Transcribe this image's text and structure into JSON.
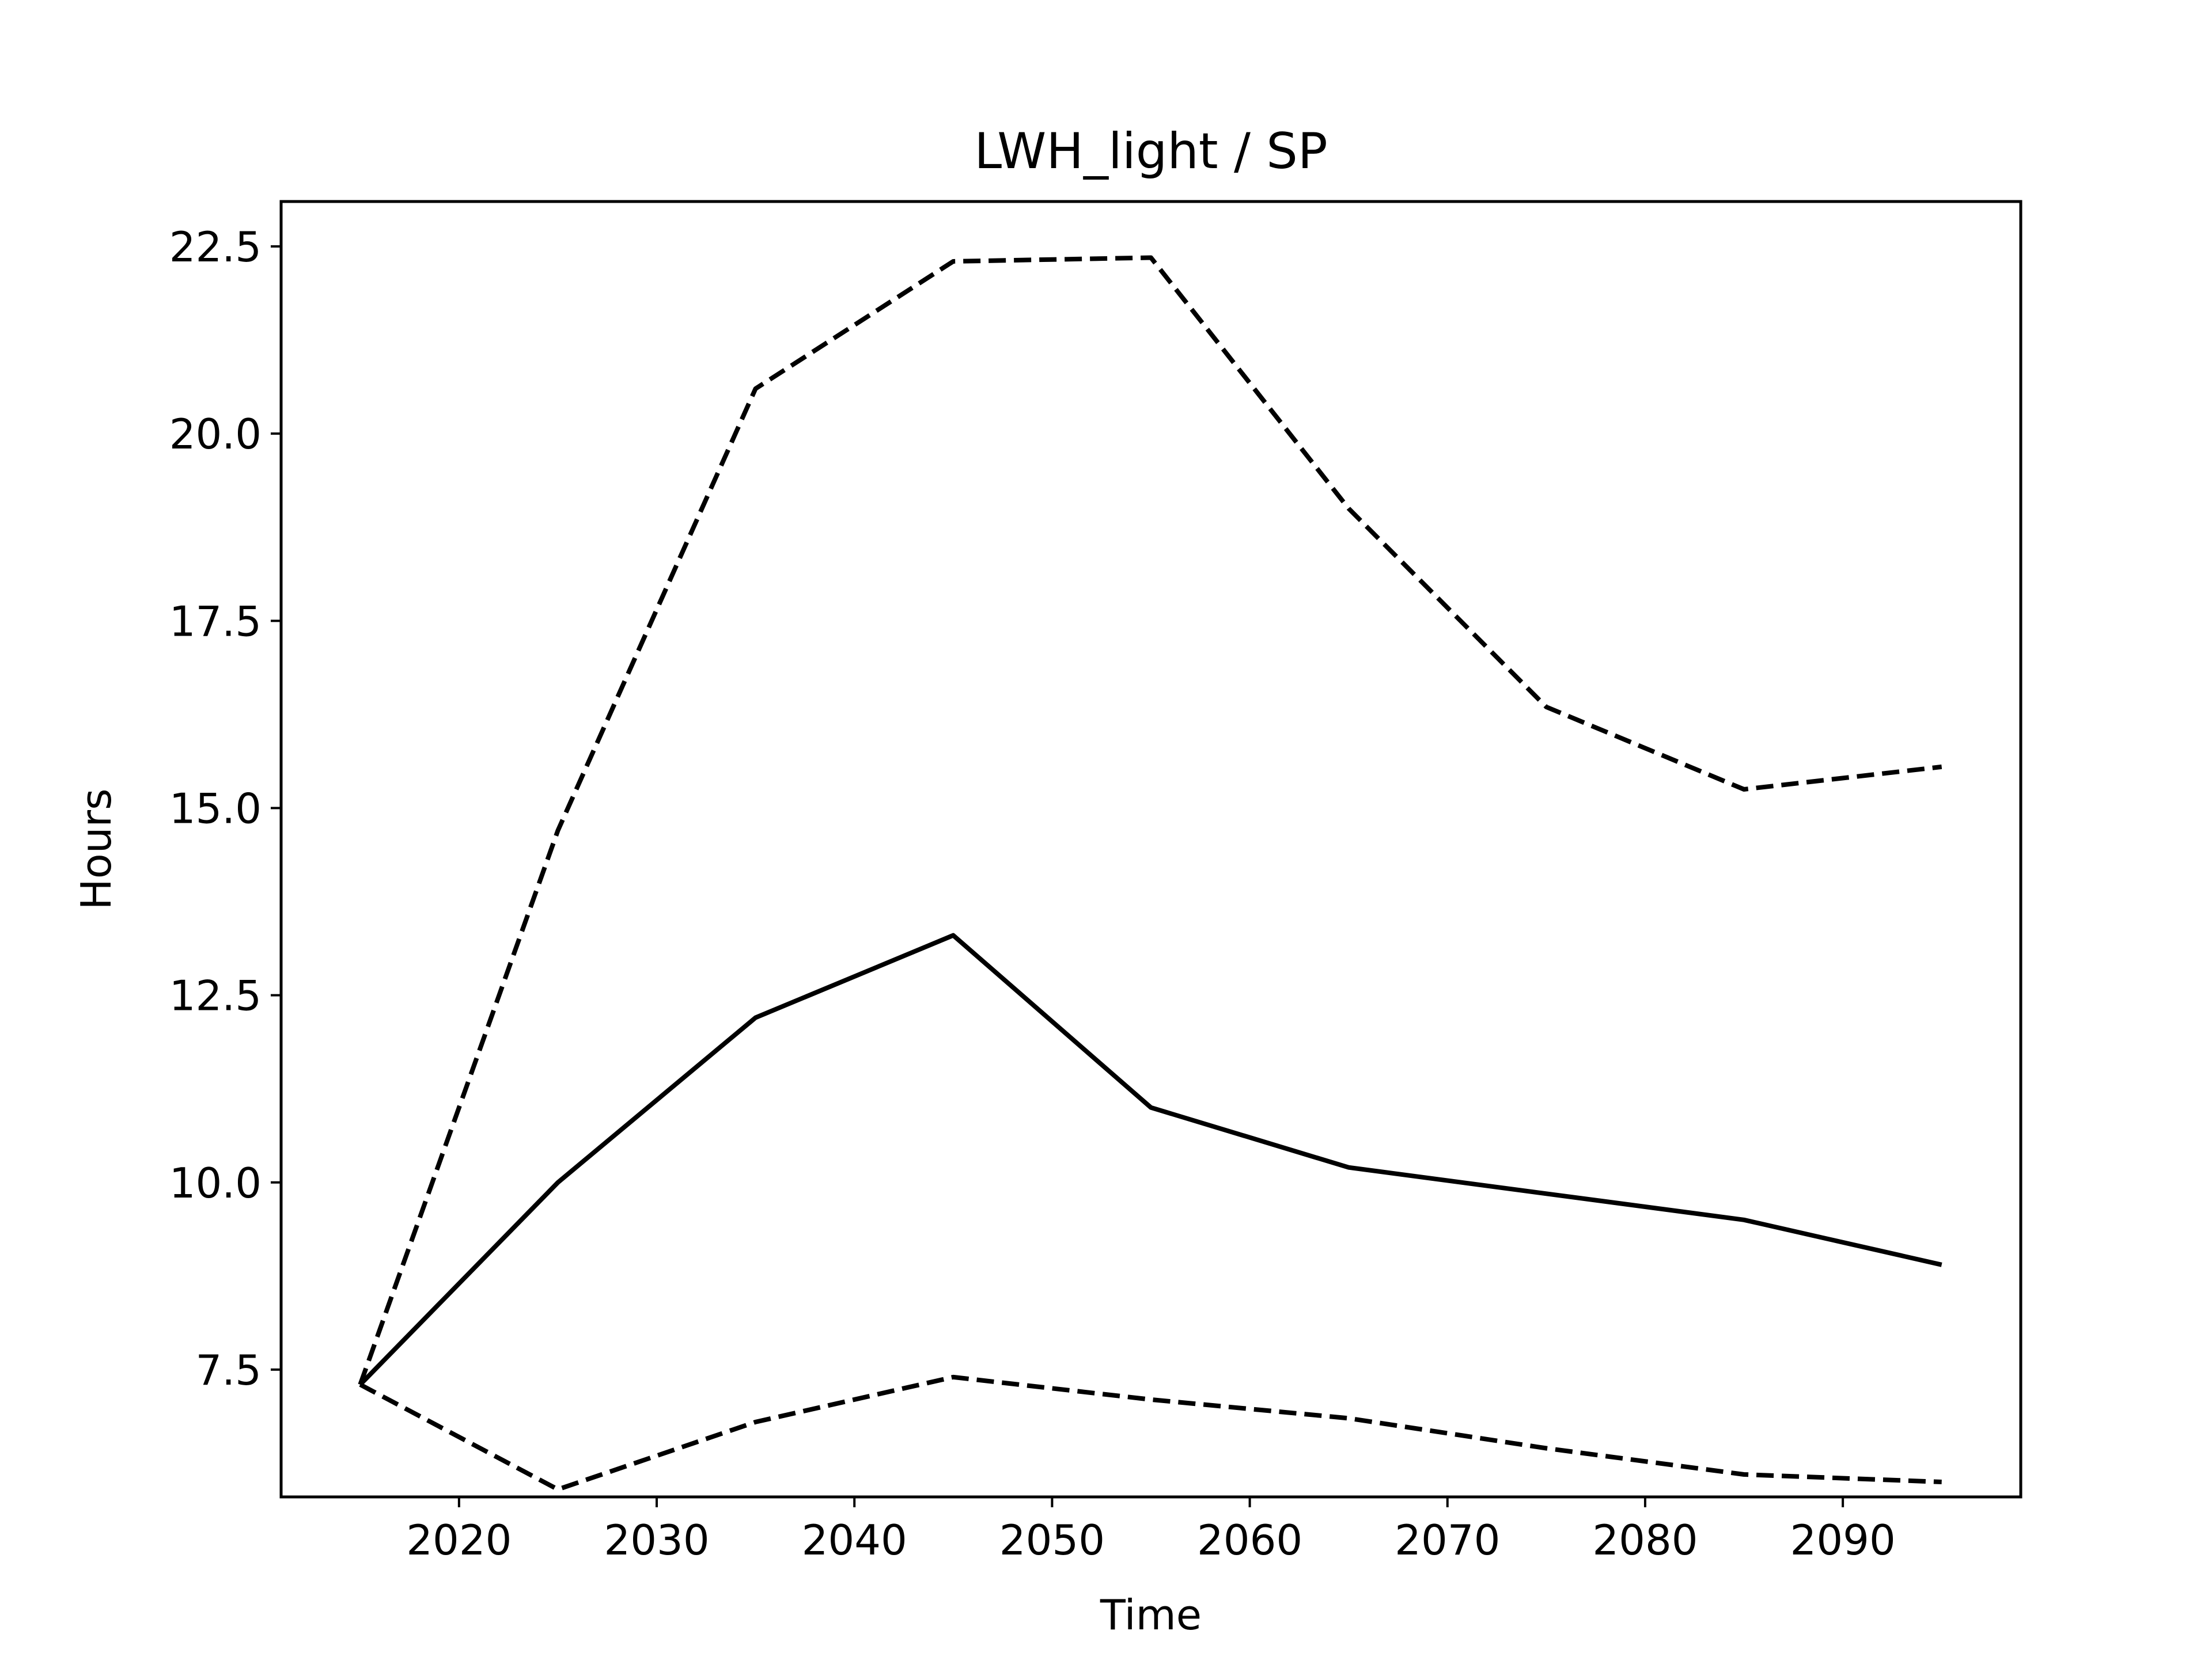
{
  "chart_data": {
    "type": "line",
    "title": "LWH_light / SP",
    "xlabel": "Time",
    "ylabel": "Hours",
    "x": [
      2015,
      2025,
      2035,
      2045,
      2055,
      2065,
      2075,
      2085,
      2095
    ],
    "xlim": [
      2011,
      2099
    ],
    "ylim": [
      5.8,
      23.1
    ],
    "xticks": [
      2020,
      2030,
      2040,
      2050,
      2060,
      2070,
      2080,
      2090
    ],
    "yticks": [
      7.5,
      10.0,
      12.5,
      15.0,
      17.5,
      20.0,
      22.5
    ],
    "ytick_labels": [
      "7.5",
      "10.0",
      "12.5",
      "15.0",
      "17.5",
      "20.0",
      "22.5"
    ],
    "grid": false,
    "legend": "none",
    "series": [
      {
        "style": "solid",
        "color": "#000000",
        "values": [
          7.3,
          10.0,
          12.2,
          13.3,
          11.0,
          10.2,
          9.85,
          9.5,
          8.9
        ]
      },
      {
        "style": "dashed",
        "color": "#000000",
        "values": [
          7.3,
          14.7,
          20.6,
          22.3,
          22.35,
          19.0,
          16.35,
          15.25,
          15.55
        ]
      },
      {
        "style": "dashed",
        "color": "#000000",
        "values": [
          7.3,
          5.9,
          6.8,
          7.4,
          7.1,
          6.85,
          6.45,
          6.1,
          6.0
        ]
      }
    ]
  }
}
